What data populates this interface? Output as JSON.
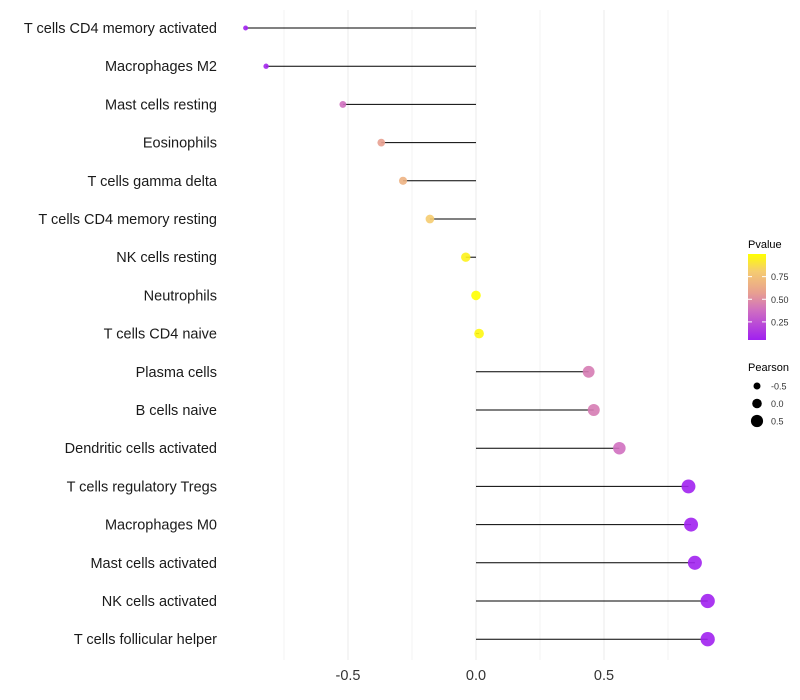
{
  "chart_data": {
    "type": "lollipop",
    "title": "",
    "xlabel": "",
    "ylabel": "",
    "xlim": [
      -0.9,
      0.9
    ],
    "xticks": [
      -0.5,
      0.0,
      0.5
    ],
    "xtick_labels": [
      "-0.5",
      "0.0",
      "0.5"
    ],
    "grid": true,
    "categories": [
      "T cells CD4 memory activated",
      "Macrophages M2",
      "Mast cells resting",
      "Eosinophils",
      "T cells gamma delta",
      "T cells CD4 memory resting",
      "NK cells resting",
      "Neutrophils",
      "T cells CD4 naive",
      "Plasma cells",
      "B cells naive",
      "Dendritic cells activated",
      "T cells regulatory  Tregs",
      "Macrophages M0",
      "Mast cells activated",
      "NK cells activated",
      "T cells follicular helper"
    ],
    "pearson": [
      -0.9,
      -0.82,
      -0.52,
      -0.37,
      -0.285,
      -0.18,
      -0.04,
      0.0,
      0.012,
      0.44,
      0.46,
      0.56,
      0.83,
      0.84,
      0.855,
      0.905,
      0.905
    ],
    "pvalue": [
      0.01,
      0.02,
      0.35,
      0.55,
      0.65,
      0.8,
      0.95,
      1.0,
      0.97,
      0.4,
      0.4,
      0.35,
      0.01,
      0.01,
      0.01,
      0.005,
      0.005
    ],
    "legend_color": {
      "title": "Pvalue",
      "ticks": [
        "0.75",
        "0.50",
        "0.25"
      ],
      "tick_values": [
        0.75,
        0.5,
        0.25
      ],
      "low": "#A020F0",
      "high": "#FFFF00",
      "position": "right"
    },
    "legend_size": {
      "title": "Pearson",
      "labels": [
        "-0.5",
        "0.0",
        "0.5"
      ],
      "values": [
        -0.5,
        0.0,
        0.5
      ],
      "position": "right"
    }
  }
}
